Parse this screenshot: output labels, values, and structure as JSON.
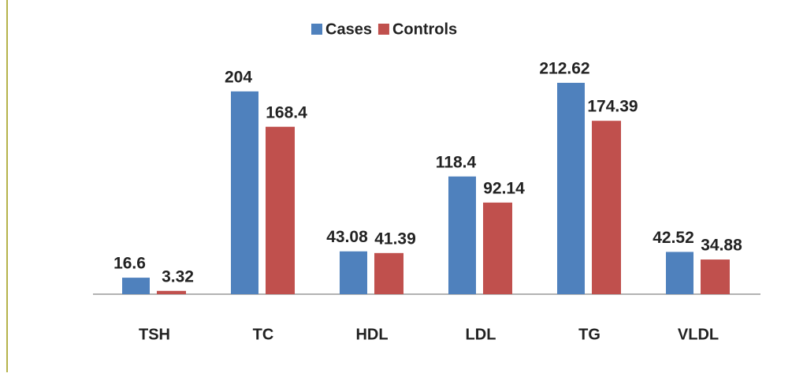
{
  "chart_data": {
    "type": "bar",
    "categories": [
      "TSH",
      "TC",
      "HDL",
      "LDL",
      "TG",
      "VLDL"
    ],
    "series": [
      {
        "name": "Cases",
        "color": "#4f81bd",
        "values": [
          16.6,
          204,
          43.08,
          118.4,
          212.62,
          42.52
        ]
      },
      {
        "name": "Controls",
        "color": "#c0504d",
        "values": [
          3.32,
          168.4,
          41.39,
          92.14,
          174.39,
          34.88
        ]
      }
    ],
    "legend": "top"
  }
}
